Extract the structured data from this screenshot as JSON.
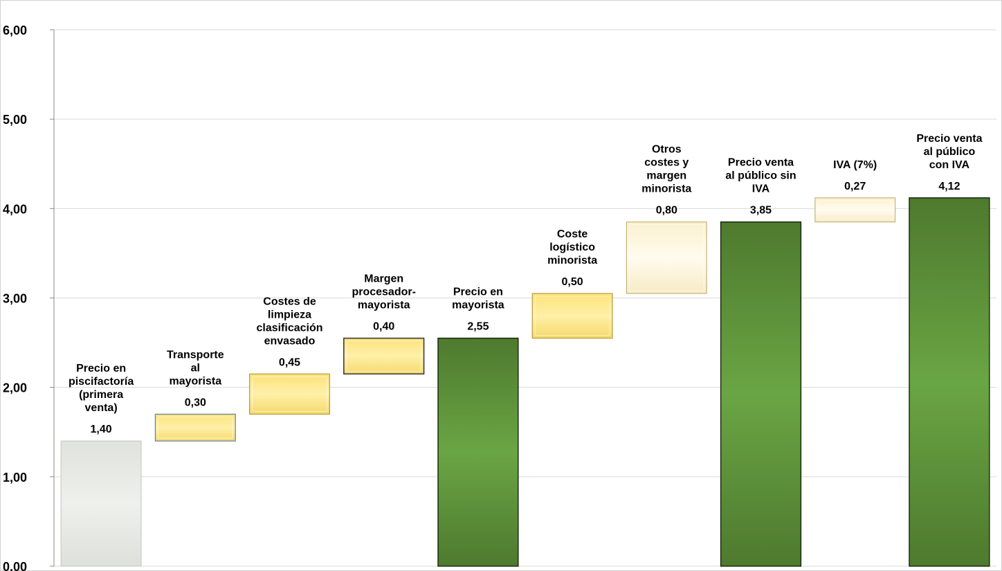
{
  "chart_data": {
    "type": "bar",
    "subtype": "waterfall",
    "title": "",
    "xlabel": "",
    "ylabel": "",
    "ylim": [
      0,
      6
    ],
    "yticks": [
      "0.00",
      "1,00",
      "2,00",
      "3,00",
      "4,00",
      "5,00",
      "6,00"
    ],
    "grid": true,
    "legend": "none",
    "bars": [
      {
        "label": [
          "Precio en",
          "piscifactoría",
          "(primera",
          "venta)"
        ],
        "value_label": "1,40",
        "base": 0,
        "value": 1.4,
        "kind": "initial",
        "fill": "#e8ebe5"
      },
      {
        "label": [
          "Transporte",
          "al",
          "mayorista"
        ],
        "value_label": "0,30",
        "base": 1.4,
        "value": 0.3,
        "kind": "delta",
        "fill": "#fde992"
      },
      {
        "label": [
          "Costes de",
          "limpieza",
          "clasificación",
          "envasado"
        ],
        "value_label": "0,45",
        "base": 1.7,
        "value": 0.45,
        "kind": "delta",
        "fill": "#fde992"
      },
      {
        "label": [
          "Margen",
          "procesador-",
          "mayorista"
        ],
        "value_label": "0,40",
        "base": 2.15,
        "value": 0.4,
        "kind": "delta",
        "fill": "#fde79a"
      },
      {
        "label": [
          "Precio en",
          "mayorista"
        ],
        "value_label": "2,55",
        "base": 0,
        "value": 2.55,
        "kind": "total",
        "fill": "#5a8a38"
      },
      {
        "label": [
          "Coste",
          "logístico",
          "minorista"
        ],
        "value_label": "0,50",
        "base": 2.55,
        "value": 0.5,
        "kind": "delta",
        "fill": "#fde992"
      },
      {
        "label": [
          "Otros",
          "costes y",
          "margen",
          "minorista"
        ],
        "value_label": "0,80",
        "base": 3.05,
        "value": 0.8,
        "kind": "delta",
        "fill": "#fdf6dc"
      },
      {
        "label": [
          "Precio venta",
          "al público sin",
          "IVA"
        ],
        "value_label": "3,85",
        "base": 0,
        "value": 3.85,
        "kind": "total",
        "fill": "#5a8a38"
      },
      {
        "label": [
          "IVA (7%)"
        ],
        "value_label": "0,27",
        "base": 3.85,
        "value": 0.27,
        "kind": "delta",
        "fill": "#fdf9ea"
      },
      {
        "label": [
          "Precio venta",
          "al público",
          "con IVA"
        ],
        "value_label": "4,12",
        "base": 0,
        "value": 4.12,
        "kind": "total",
        "fill": "#5a8a38"
      }
    ]
  }
}
